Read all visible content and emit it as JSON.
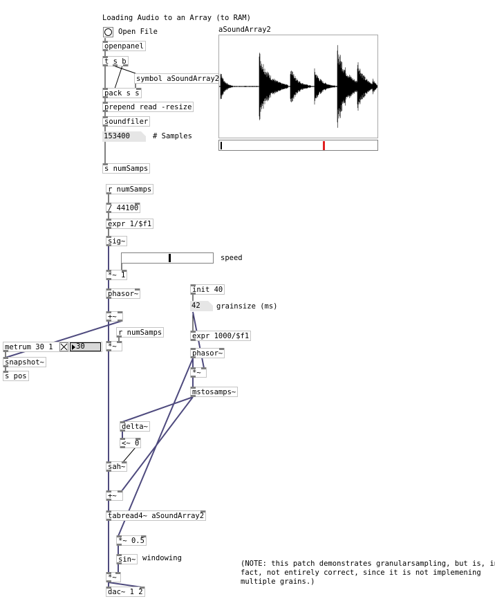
{
  "title": "Loading Audio to an Array (to RAM)",
  "open_file": "Open File",
  "array": {
    "name": "aSoundArray2"
  },
  "objects": {
    "openpanel": "openpanel",
    "tsb": "t s b",
    "symbol": "symbol aSoundArray2",
    "pack": "pack s s",
    "prepend": "prepend read -resize",
    "soundfiler": "soundfiler",
    "samples_value": "153400",
    "samples_label": "# Samples",
    "s_numsamps": "s numSamps",
    "r_numsamps": "r numSamps",
    "div": "/ 44100",
    "expr1": "expr 1/$f1",
    "sig": "sig~",
    "speed_label": "speed",
    "mul1": "*~ 1",
    "phasor1": "phasor~",
    "plus1": "+~",
    "r_numsamps2": "r numSamps",
    "mul2": "*~",
    "metrum": "metrum 30 1",
    "metro_num": "30",
    "snapshot": "snapshot~",
    "spos": "s pos",
    "init": "init 40",
    "grain_value": "42",
    "grain_label": "grainsize (ms)",
    "expr2": "expr 1000/$f1",
    "phasor2": "phasor~",
    "mul3": "*~",
    "mstosamps": "mstosamps~",
    "delta": "delta~",
    "lt": "<~ 0",
    "sah": "sah~",
    "plus2": "+~",
    "tabread": "tabread4~ aSoundArray2",
    "mulhalf": "*~ 0.5",
    "sin": "sin~",
    "windowing": "windowing",
    "mul4": "*~",
    "dac": "dac~ 1 2"
  },
  "note": "(NOTE: this patch demonstrates granularsampling, but is, in\nfact, not entirely correct, since it is not implemening\nmultiple grains.)",
  "speed_slider_value": 0.52,
  "playhead_value": 0.66,
  "colors": {
    "signal_wire": "#4e4a7e",
    "control_wire": "#000000",
    "box_border": "#c4c4c4",
    "numbox_bg": "#e6e6e6",
    "playhead": "#e02020"
  }
}
